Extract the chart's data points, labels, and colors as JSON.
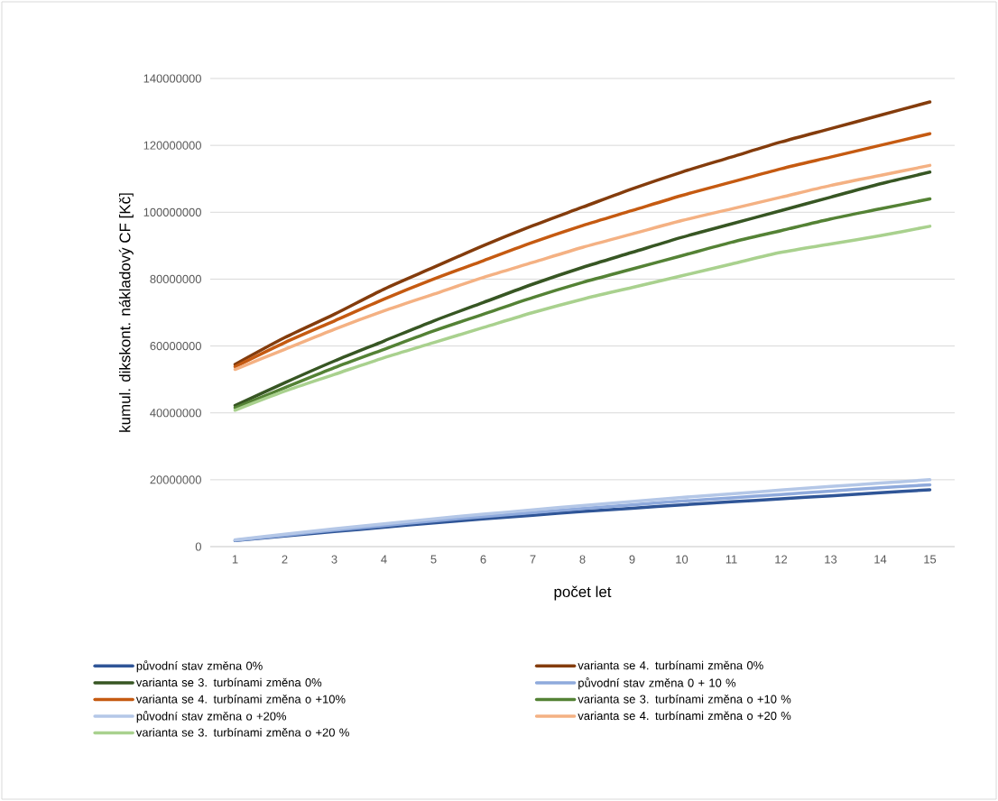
{
  "chart_data": {
    "type": "line",
    "xlabel": "počet let",
    "ylabel": "kumul. dikskont. nákladový CF [Kč]",
    "categories": [
      "1",
      "2",
      "3",
      "4",
      "5",
      "6",
      "7",
      "8",
      "9",
      "10",
      "11",
      "12",
      "13",
      "14",
      "15"
    ],
    "ylim": [
      0,
      140000000
    ],
    "yticks": [
      0,
      20000000,
      40000000,
      60000000,
      80000000,
      100000000,
      120000000,
      140000000
    ],
    "grid": "y",
    "legend": "bottom",
    "marker": "none",
    "line_style": "solid",
    "series": [
      {
        "name": "původní stav změna 0%",
        "color": "#2f5597",
        "values": [
          1800000,
          3200000,
          4500000,
          5800000,
          7100000,
          8300000,
          9400000,
          10500000,
          11500000,
          12500000,
          13400000,
          14300000,
          15200000,
          16100000,
          17000000
        ]
      },
      {
        "name": "varianta se 4. turbínami změna 0%",
        "color": "#843c0c",
        "values": [
          54500000,
          62500000,
          69500000,
          77000000,
          83500000,
          90000000,
          96000000,
          101500000,
          107000000,
          112000000,
          116500000,
          121000000,
          125000000,
          129000000,
          133000000
        ]
      },
      {
        "name": "varianta se 3. turbínami změna 0%",
        "color": "#375623",
        "values": [
          42200000,
          49000000,
          55500000,
          61500000,
          67500000,
          73000000,
          78500000,
          83500000,
          88000000,
          92500000,
          96500000,
          100500000,
          104500000,
          108500000,
          112000000
        ]
      },
      {
        "name": "původní stav změna 0 + 10 %",
        "color": "#8faadc",
        "values": [
          1900000,
          3400000,
          4900000,
          6300000,
          7700000,
          9000000,
          10200000,
          11400000,
          12500000,
          13600000,
          14600000,
          15600000,
          16600000,
          17600000,
          18500000
        ]
      },
      {
        "name": "varianta se 4. turbínami změna o +10%",
        "color": "#c55a11",
        "values": [
          53800000,
          61000000,
          67500000,
          74000000,
          80000000,
          85500000,
          91000000,
          96000000,
          100500000,
          105000000,
          109000000,
          113000000,
          116500000,
          120000000,
          123500000
        ]
      },
      {
        "name": "varianta se 3. turbínami změna o +10 %",
        "color": "#548235",
        "values": [
          41500000,
          47500000,
          53500000,
          59000000,
          64500000,
          69500000,
          74500000,
          79000000,
          83000000,
          87000000,
          91000000,
          94500000,
          98000000,
          101000000,
          104000000
        ]
      },
      {
        "name": "původní stav změna o +20%",
        "color": "#b4c7e7",
        "values": [
          2000000,
          3700000,
          5300000,
          6800000,
          8300000,
          9700000,
          11000000,
          12300000,
          13500000,
          14700000,
          15800000,
          16900000,
          18000000,
          19000000,
          20000000
        ]
      },
      {
        "name": "varianta se 4. turbínami změna o +20 %",
        "color": "#f4b183",
        "values": [
          53000000,
          59000000,
          65000000,
          70500000,
          75500000,
          80500000,
          85000000,
          89500000,
          93500000,
          97500000,
          101000000,
          104500000,
          108000000,
          111000000,
          114000000
        ]
      },
      {
        "name": "varianta se 3. turbínami změna o +20 %",
        "color": "#a9d18e",
        "values": [
          40800000,
          46500000,
          51500000,
          56500000,
          61000000,
          65500000,
          70000000,
          74000000,
          77500000,
          81000000,
          84500000,
          88000000,
          90500000,
          93000000,
          95800000
        ]
      }
    ]
  }
}
